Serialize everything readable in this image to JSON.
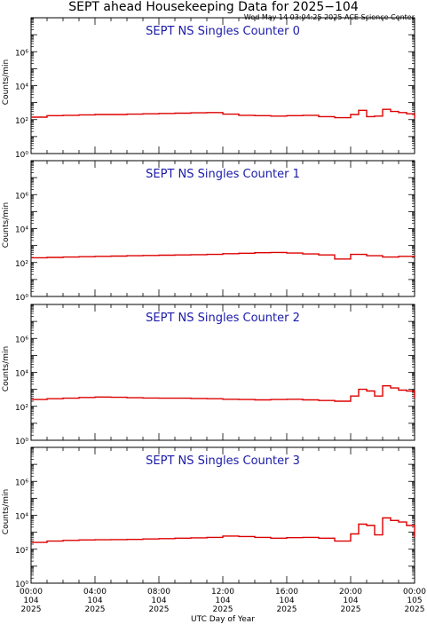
{
  "header": {
    "title": "SEPT ahead Housekeeping Data for 2025−104",
    "subtitle": "Wed May 14 03:04:25 2025 ACE Science Center"
  },
  "colors": {
    "series": "#dd0000",
    "panel_title": "#1a1aaa",
    "axes": "#000000"
  },
  "chart_data": [
    {
      "type": "line",
      "title": "SEPT NS Singles Counter 0",
      "ylabel": "Counts/min",
      "yscale": "log",
      "ylim": [
        1,
        100000000
      ],
      "yticks": [
        1,
        100,
        10000,
        1000000
      ],
      "yticklabels": [
        "10⁰",
        "10²",
        "10⁴",
        "10⁶"
      ],
      "x": [
        0,
        1,
        2,
        3,
        4,
        5,
        6,
        7,
        8,
        9,
        10,
        11,
        12,
        13,
        14,
        15,
        16,
        17,
        18,
        19,
        20,
        20.5,
        21,
        21.5,
        22,
        22.5,
        23,
        23.5,
        24
      ],
      "values": [
        140,
        170,
        180,
        190,
        200,
        200,
        210,
        220,
        230,
        240,
        250,
        260,
        210,
        180,
        170,
        160,
        170,
        180,
        150,
        130,
        200,
        350,
        150,
        160,
        400,
        300,
        260,
        220,
        120
      ]
    },
    {
      "type": "line",
      "title": "SEPT NS Singles Counter 1",
      "ylabel": "Counts/min",
      "yscale": "log",
      "ylim": [
        1,
        100000000
      ],
      "yticks": [
        1,
        100,
        10000,
        1000000
      ],
      "yticklabels": [
        "10⁰",
        "10²",
        "10⁴",
        "10⁶"
      ],
      "x": [
        0,
        1,
        2,
        3,
        4,
        5,
        6,
        7,
        8,
        9,
        10,
        11,
        12,
        13,
        14,
        15,
        16,
        17,
        18,
        19,
        20,
        21,
        22,
        23,
        24
      ],
      "values": [
        190,
        200,
        210,
        220,
        230,
        240,
        250,
        260,
        270,
        280,
        290,
        300,
        330,
        350,
        380,
        390,
        360,
        320,
        280,
        160,
        300,
        250,
        210,
        230,
        240
      ]
    },
    {
      "type": "line",
      "title": "SEPT NS Singles Counter 2",
      "ylabel": "Counts/min",
      "yscale": "log",
      "ylim": [
        1,
        100000000
      ],
      "yticks": [
        1,
        100,
        10000,
        1000000
      ],
      "yticklabels": [
        "10⁰",
        "10²",
        "10⁴",
        "10⁶"
      ],
      "x": [
        0,
        1,
        2,
        3,
        4,
        5,
        6,
        7,
        8,
        9,
        10,
        11,
        12,
        13,
        14,
        15,
        16,
        17,
        18,
        19,
        20,
        20.5,
        21,
        21.5,
        22,
        22.5,
        23,
        23.5,
        24
      ],
      "values": [
        250,
        280,
        300,
        330,
        350,
        340,
        320,
        310,
        300,
        300,
        290,
        280,
        260,
        250,
        240,
        250,
        260,
        240,
        220,
        200,
        400,
        1000,
        800,
        400,
        1600,
        1200,
        900,
        800,
        300
      ]
    },
    {
      "type": "line",
      "title": "SEPT NS Singles Counter 3",
      "ylabel": "Counts/min",
      "yscale": "log",
      "ylim": [
        1,
        100000000
      ],
      "yticks": [
        1,
        100,
        10000,
        1000000
      ],
      "yticklabels": [
        "10⁰",
        "10²",
        "10⁴",
        "10⁶"
      ],
      "xlabel": "UTC Day of Year",
      "xticks": [
        0,
        4,
        8,
        12,
        16,
        20,
        24
      ],
      "xticklabels": [
        [
          "00:00",
          "104",
          "2025"
        ],
        [
          "04:00",
          "104",
          "2025"
        ],
        [
          "08:00",
          "104",
          "2025"
        ],
        [
          "12:00",
          "104",
          "2025"
        ],
        [
          "16:00",
          "104",
          "2025"
        ],
        [
          "20:00",
          "104",
          "2025"
        ],
        [
          "00:00",
          "105",
          "2025"
        ]
      ],
      "x": [
        0,
        1,
        2,
        3,
        4,
        5,
        6,
        7,
        8,
        9,
        10,
        11,
        12,
        13,
        14,
        15,
        16,
        17,
        18,
        19,
        20,
        20.5,
        21,
        21.5,
        22,
        22.5,
        23,
        23.5,
        24
      ],
      "values": [
        250,
        300,
        330,
        350,
        360,
        370,
        380,
        400,
        420,
        450,
        470,
        500,
        600,
        560,
        500,
        450,
        480,
        500,
        450,
        300,
        800,
        3000,
        2500,
        700,
        7000,
        5000,
        4000,
        2500,
        500
      ]
    }
  ]
}
